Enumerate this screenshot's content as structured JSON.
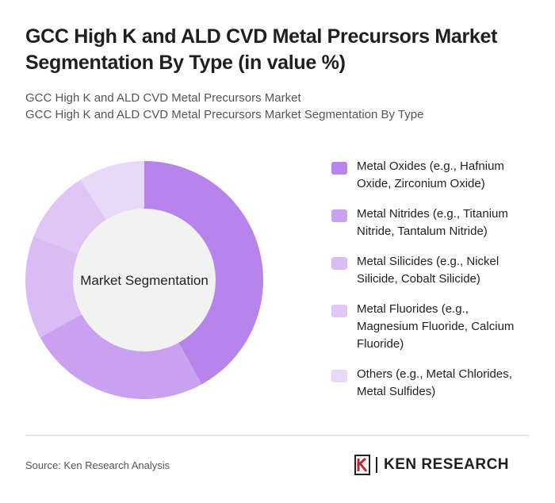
{
  "header": {
    "title": "GCC High K and ALD CVD Metal Precursors Market Segmentation By Type (in value %)",
    "subtitle_line1": "GCC High K and ALD CVD Metal Precursors Market",
    "subtitle_line2": "GCC High K and ALD CVD Metal Precursors Market Segmentation By Type"
  },
  "chart_data": {
    "type": "pie",
    "center_label": "Market Segmentation",
    "categories": [
      "Metal Oxides (e.g., Hafnium Oxide, Zirconium Oxide)",
      "Metal Nitrides (e.g., Titanium Nitride, Tantalum Nitride)",
      "Metal Silicides (e.g., Nickel Silicide, Cobalt Silicide)",
      "Metal Fluorides (e.g., Magnesium Fluoride, Calcium Fluoride)",
      "Others (e.g., Metal Chlorides, Metal Sulfides)"
    ],
    "values": [
      42,
      25,
      14,
      10,
      9
    ],
    "colors": [
      "#b784ec",
      "#c9a1f0",
      "#d9bcf4",
      "#dfc6f6",
      "#e8d9f8"
    ],
    "legend_position": "right"
  },
  "footer": {
    "source": "Source: Ken Research Analysis",
    "logo_text": "KEN RESEARCH",
    "logo_mark": "K"
  }
}
